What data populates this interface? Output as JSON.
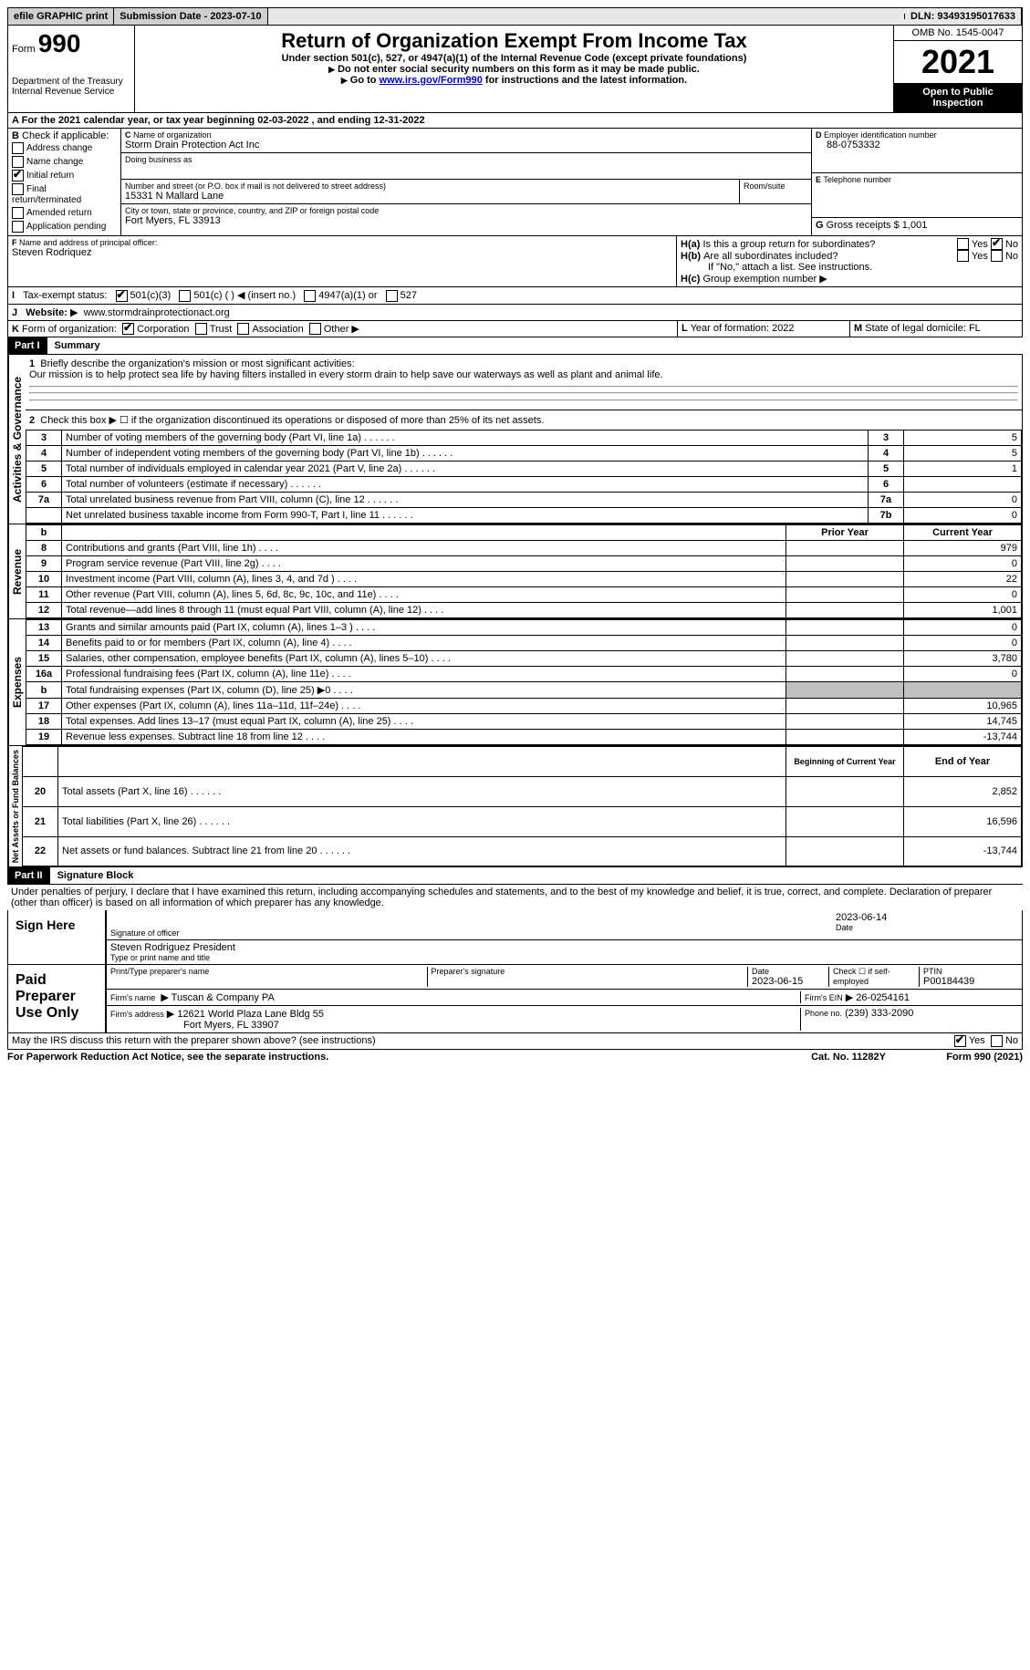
{
  "topbar": {
    "efile": "efile GRAPHIC print",
    "submission": "Submission Date - 2023-07-10",
    "dln": "DLN: 93493195017633"
  },
  "header": {
    "form_word": "Form",
    "form_num": "990",
    "title": "Return of Organization Exempt From Income Tax",
    "subtitle": "Under section 501(c), 527, or 4947(a)(1) of the Internal Revenue Code (except private foundations)",
    "warn1": "Do not enter social security numbers on this form as it may be made public.",
    "warn2_prefix": "Go to ",
    "warn2_link": "www.irs.gov/Form990",
    "warn2_suffix": " for instructions and the latest information.",
    "dept": "Department of the Treasury",
    "irs": "Internal Revenue Service",
    "omb": "OMB No. 1545-0047",
    "year": "2021",
    "inspect": "Open to Public Inspection"
  },
  "lineA": {
    "text": "For the 2021 calendar year, or tax year beginning 02-03-2022   , and ending 12-31-2022",
    "label": "A"
  },
  "boxB": {
    "label": "B",
    "intro": "Check if applicable:",
    "opt1": "Address change",
    "opt2": "Name change",
    "opt3": "Initial return",
    "opt4": "Final return/terminated",
    "opt5": "Amended return",
    "opt6": "Application pending"
  },
  "boxC": {
    "label": "C",
    "name_label": "Name of organization",
    "name": "Storm Drain Protection Act Inc",
    "dba_label": "Doing business as",
    "dba": "",
    "street_label": "Number and street (or P.O. box if mail is not delivered to street address)",
    "room_label": "Room/suite",
    "street": "15331 N Mallard Lane",
    "city_label": "City or town, state or province, country, and ZIP or foreign postal code",
    "city": "Fort Myers, FL  33913"
  },
  "boxD": {
    "label": "D",
    "ein_label": "Employer identification number",
    "ein": "88-0753332"
  },
  "boxE": {
    "label": "E",
    "phone_label": "Telephone number",
    "phone": ""
  },
  "boxG": {
    "label": "G",
    "receipts_label": "Gross receipts $",
    "receipts": "1,001"
  },
  "boxF": {
    "label": "F",
    "officer_label": "Name and address of principal officer:",
    "officer": "Steven Rodriquez"
  },
  "boxH": {
    "ha_label": "H(a)",
    "ha_text": "Is this a group return for subordinates?",
    "hb_label": "H(b)",
    "hb_text": "Are all subordinates included?",
    "hb_note": "If \"No,\" attach a list. See instructions.",
    "hc_label": "H(c)",
    "hc_text": "Group exemption number",
    "yes": "Yes",
    "no": "No"
  },
  "boxI": {
    "label": "I",
    "text": "Tax-exempt status:",
    "opt1": "501(c)(3)",
    "opt2": "501(c) (  ) ◀ (insert no.)",
    "opt3": "4947(a)(1) or",
    "opt4": "527"
  },
  "boxJ": {
    "label": "J",
    "text": "Website:",
    "url": "www.stormdrainprotectionact.org"
  },
  "boxK": {
    "label": "K",
    "text": "Form of organization:",
    "opt1": "Corporation",
    "opt2": "Trust",
    "opt3": "Association",
    "opt4": "Other"
  },
  "boxL": {
    "label": "L",
    "text": "Year of formation: 2022"
  },
  "boxM": {
    "label": "M",
    "text": "State of legal domicile: FL"
  },
  "part1": {
    "header": "Part I",
    "title": "Summary",
    "side_label_1": "Activities & Governance",
    "side_label_2": "Revenue",
    "side_label_3": "Expenses",
    "side_label_4": "Net Assets or Fund Balances",
    "line1_label": "1",
    "line1_text": "Briefly describe the organization's mission or most significant activities:",
    "line1_value": "Our mission is to help protect sea life by having filters installed in every storm drain to help save our waterways as well as plant and animal life.",
    "line2_label": "2",
    "line2_text": "Check this box ▶ ☐ if the organization discontinued its operations or disposed of more than 25% of its net assets.",
    "rows": [
      {
        "n": "3",
        "text": "Number of voting members of the governing body (Part VI, line 1a)",
        "box": "3",
        "val": "5"
      },
      {
        "n": "4",
        "text": "Number of independent voting members of the governing body (Part VI, line 1b)",
        "box": "4",
        "val": "5"
      },
      {
        "n": "5",
        "text": "Total number of individuals employed in calendar year 2021 (Part V, line 2a)",
        "box": "5",
        "val": "1"
      },
      {
        "n": "6",
        "text": "Total number of volunteers (estimate if necessary)",
        "box": "6",
        "val": ""
      },
      {
        "n": "7a",
        "text": "Total unrelated business revenue from Part VIII, column (C), line 12",
        "box": "7a",
        "val": "0"
      },
      {
        "n": "",
        "text": "Net unrelated business taxable income from Form 990-T, Part I, line 11",
        "box": "7b",
        "val": "0"
      }
    ],
    "col_headers": {
      "n": "b",
      "prior": "Prior Year",
      "current": "Current Year"
    },
    "rev_rows": [
      {
        "n": "8",
        "text": "Contributions and grants (Part VIII, line 1h)",
        "prior": "",
        "current": "979"
      },
      {
        "n": "9",
        "text": "Program service revenue (Part VIII, line 2g)",
        "prior": "",
        "current": "0"
      },
      {
        "n": "10",
        "text": "Investment income (Part VIII, column (A), lines 3, 4, and 7d )",
        "prior": "",
        "current": "22"
      },
      {
        "n": "11",
        "text": "Other revenue (Part VIII, column (A), lines 5, 6d, 8c, 9c, 10c, and 11e)",
        "prior": "",
        "current": "0"
      },
      {
        "n": "12",
        "text": "Total revenue—add lines 8 through 11 (must equal Part VIII, column (A), line 12)",
        "prior": "",
        "current": "1,001"
      }
    ],
    "exp_rows": [
      {
        "n": "13",
        "text": "Grants and similar amounts paid (Part IX, column (A), lines 1–3 )",
        "prior": "",
        "current": "0"
      },
      {
        "n": "14",
        "text": "Benefits paid to or for members (Part IX, column (A), line 4)",
        "prior": "",
        "current": "0"
      },
      {
        "n": "15",
        "text": "Salaries, other compensation, employee benefits (Part IX, column (A), lines 5–10)",
        "prior": "",
        "current": "3,780"
      },
      {
        "n": "16a",
        "text": "Professional fundraising fees (Part IX, column (A), line 11e)",
        "prior": "",
        "current": "0"
      },
      {
        "n": "b",
        "text": "Total fundraising expenses (Part IX, column (D), line 25) ▶0",
        "prior": "shaded",
        "current": "shaded"
      },
      {
        "n": "17",
        "text": "Other expenses (Part IX, column (A), lines 11a–11d, 11f–24e)",
        "prior": "",
        "current": "10,965"
      },
      {
        "n": "18",
        "text": "Total expenses. Add lines 13–17 (must equal Part IX, column (A), line 25)",
        "prior": "",
        "current": "14,745"
      },
      {
        "n": "19",
        "text": "Revenue less expenses. Subtract line 18 from line 12",
        "prior": "",
        "current": "-13,744"
      }
    ],
    "net_headers": {
      "begin": "Beginning of Current Year",
      "end": "End of Year"
    },
    "net_rows": [
      {
        "n": "20",
        "text": "Total assets (Part X, line 16)",
        "begin": "",
        "end": "2,852"
      },
      {
        "n": "21",
        "text": "Total liabilities (Part X, line 26)",
        "begin": "",
        "end": "16,596"
      },
      {
        "n": "22",
        "text": "Net assets or fund balances. Subtract line 21 from line 20",
        "begin": "",
        "end": "-13,744"
      }
    ]
  },
  "part2": {
    "header": "Part II",
    "title": "Signature Block",
    "declaration": "Under penalties of perjury, I declare that I have examined this return, including accompanying schedules and statements, and to the best of my knowledge and belief, it is true, correct, and complete. Declaration of preparer (other than officer) is based on all information of which preparer has any knowledge.",
    "sign_here": "Sign Here",
    "sig_officer": "Signature of officer",
    "sig_date": "2023-06-14",
    "date_label": "Date",
    "officer_name": "Steven Rodriguez  President",
    "type_label": "Type or print name and title",
    "paid_prep": "Paid Preparer Use Only",
    "prep_name_label": "Print/Type preparer's name",
    "prep_sig_label": "Preparer's signature",
    "prep_date": "2023-06-15",
    "check_if": "Check ☐ if self-employed",
    "ptin_label": "PTIN",
    "ptin": "P00184439",
    "firm_name_label": "Firm's name",
    "firm_name": "Tuscan & Company PA",
    "firm_ein_label": "Firm's EIN",
    "firm_ein": "26-0254161",
    "firm_addr_label": "Firm's address",
    "firm_addr": "12621 World Plaza Lane Bldg 55",
    "firm_city": "Fort Myers, FL  33907",
    "phone_label": "Phone no.",
    "phone": "(239) 333-2090",
    "discuss": "May the IRS discuss this return with the preparer shown above? (see instructions)",
    "paperwork": "For Paperwork Reduction Act Notice, see the separate instructions.",
    "cat": "Cat. No. 11282Y",
    "form_footer": "Form 990 (2021)"
  }
}
